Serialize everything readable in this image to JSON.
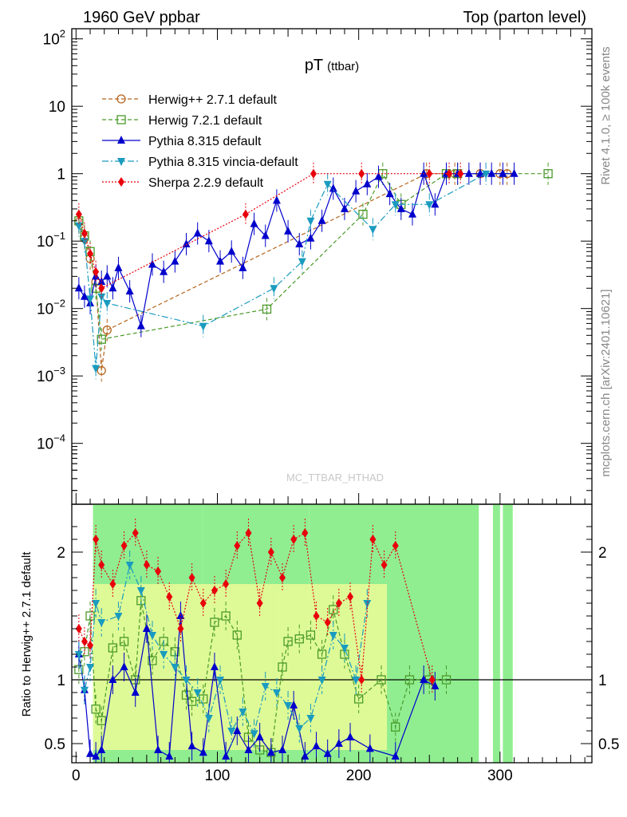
{
  "header": {
    "left": "1960 GeV ppbar",
    "right": "Top (parton level)"
  },
  "side_labels": {
    "rivet": "Rivet 4.1.0, ≥ 100k events",
    "mcplots": "mcplots.cern.ch [arXiv:2401.10621]"
  },
  "watermark": "MC_TTBAR_HTHAD",
  "chart_data": [
    {
      "type": "line",
      "title": "pT",
      "title_sub": "(ttbar)",
      "xlabel": "",
      "ylabel": "",
      "yscale": "log",
      "xlim": [
        -3,
        365
      ],
      "ylim": [
        1.25e-05,
        120
      ],
      "x_ticks": [
        "0",
        "100",
        "200",
        "300"
      ],
      "y_ticks": [
        {
          "base": "10",
          "exp": "2"
        },
        {
          "base": "10",
          "exp": ""
        },
        {
          "base": "1",
          "exp": ""
        },
        {
          "base": "10",
          "exp": "−1"
        },
        {
          "base": "10",
          "exp": "−2"
        },
        {
          "base": "10",
          "exp": "−3"
        },
        {
          "base": "10",
          "exp": "−4"
        }
      ],
      "series": [
        {
          "name": "Herwig++ 2.7.1 default",
          "color": "#b5651d",
          "style": "dashed",
          "marker": "open-circle",
          "x": [
            2,
            6,
            10,
            14,
            18,
            22,
            248,
            268,
            286,
            300,
            305
          ],
          "y": [
            0.19,
            0.11,
            0.055,
            0.025,
            0.0012,
            0.0048,
            1.0,
            1.0,
            1.0,
            1.0,
            1.0
          ]
        },
        {
          "name": "Herwig 7.2.1 default",
          "color": "#4a9a2a",
          "style": "dashed",
          "marker": "open-square",
          "x": [
            2,
            6,
            10,
            14,
            18,
            135,
            203,
            217,
            230,
            262,
            270,
            334
          ],
          "y": [
            0.2,
            0.12,
            0.07,
            0.02,
            0.0035,
            0.0098,
            0.25,
            1.0,
            0.35,
            1.0,
            1.0,
            1.0
          ]
        },
        {
          "name": "Pythia 8.315 default",
          "color": "#0000cc",
          "style": "solid",
          "marker": "filled-triangle-up",
          "x": [
            2,
            6,
            10,
            14,
            18,
            22,
            26,
            30,
            38,
            46,
            54,
            62,
            70,
            78,
            86,
            94,
            102,
            110,
            118,
            126,
            134,
            142,
            150,
            158,
            166,
            174,
            182,
            190,
            198,
            206,
            214,
            222,
            230,
            238,
            246,
            254,
            262,
            270,
            278,
            286,
            294,
            302,
            310
          ],
          "y": [
            0.02,
            0.015,
            0.012,
            0.03,
            0.025,
            0.03,
            0.02,
            0.04,
            0.018,
            0.0055,
            0.045,
            0.035,
            0.05,
            0.09,
            0.13,
            0.1,
            0.05,
            0.07,
            0.04,
            0.18,
            0.12,
            0.4,
            0.14,
            0.09,
            0.11,
            0.2,
            0.6,
            0.3,
            0.55,
            0.7,
            0.9,
            0.5,
            0.3,
            0.25,
            1.0,
            0.35,
            1.0,
            1.0,
            1.0,
            1.0,
            1.0,
            1.0,
            1.0
          ]
        },
        {
          "name": "Pythia 8.315 vincia-default",
          "color": "#1a9bbf",
          "style": "dashdot",
          "marker": "filled-triangle-down",
          "x": [
            2,
            6,
            10,
            14,
            18,
            22,
            90,
            140,
            160,
            166,
            178,
            210,
            226,
            250,
            290
          ],
          "y": [
            0.17,
            0.1,
            0.014,
            0.0013,
            0.015,
            0.012,
            0.0055,
            0.02,
            0.05,
            0.2,
            0.7,
            0.15,
            0.35,
            0.35,
            1.0
          ]
        },
        {
          "name": "Sherpa 2.2.9 default",
          "color": "#e8000b",
          "style": "dotted",
          "marker": "filled-diamond",
          "x": [
            2,
            6,
            10,
            14,
            18,
            120,
            168,
            202,
            250,
            264,
            272
          ],
          "y": [
            0.25,
            0.13,
            0.065,
            0.035,
            0.02,
            0.25,
            1.0,
            1.0,
            1.0,
            1.0,
            1.0
          ]
        }
      ]
    },
    {
      "type": "line",
      "title": "",
      "xlabel": "",
      "ylabel": "Ratio to Herwig++ 2.7.1 default",
      "xlim": [
        -3,
        365
      ],
      "ylim": [
        0.35,
        2.35
      ],
      "x_ticks": [
        "0",
        "100",
        "200",
        "300"
      ],
      "y_ticks": [
        "2",
        "1",
        "0.5"
      ],
      "bands": {
        "green_color": "#90ee90",
        "yellow_color": "#ffff99",
        "green_ranges": [
          [
            12,
            90
          ],
          [
            90,
            165
          ],
          [
            165,
            285
          ],
          [
            295,
            300
          ],
          [
            302,
            309
          ]
        ],
        "yellow_ranges": [
          [
            12,
            140
          ],
          [
            140,
            220
          ]
        ]
      },
      "series": [
        {
          "name": "Herwig 7.2.1 default",
          "color": "#4a9a2a",
          "style": "dashed",
          "marker": "open-square",
          "x": [
            2,
            6,
            10,
            14,
            18,
            26,
            34,
            42,
            46,
            54,
            62,
            70,
            78,
            82,
            90,
            98,
            106,
            114,
            122,
            130,
            138,
            146,
            150,
            158,
            166,
            174,
            182,
            190,
            200,
            216,
            226,
            236,
            250,
            262
          ],
          "y": [
            1.08,
            1.22,
            1.5,
            0.77,
            0.68,
            1.25,
            1.3,
            1.0,
            1.62,
            1.15,
            1.3,
            1.22,
            0.88,
            0.83,
            0.85,
            1.45,
            1.5,
            1.35,
            0.55,
            0.45,
            0.43,
            1.1,
            1.3,
            1.32,
            1.35,
            1.2,
            1.55,
            1.2,
            0.85,
            1.0,
            0.63,
            1.0,
            1.0,
            1.0
          ]
        },
        {
          "name": "Pythia 8.315 default",
          "color": "#0000cc",
          "style": "solid",
          "marker": "filled-triangle-up",
          "x": [
            2,
            6,
            10,
            14,
            18,
            26,
            34,
            42,
            50,
            58,
            66,
            74,
            82,
            90,
            98,
            106,
            114,
            122,
            130,
            138,
            146,
            154,
            162,
            170,
            178,
            186,
            194,
            208,
            226,
            246,
            254
          ],
          "y": [
            1.2,
            0.92,
            0.42,
            0.4,
            0.45,
            1.0,
            1.1,
            0.9,
            1.4,
            0.45,
            0.4,
            1.5,
            0.48,
            0.43,
            1.1,
            0.4,
            0.6,
            0.45,
            0.55,
            0.43,
            0.45,
            0.8,
            0.4,
            0.48,
            0.42,
            0.5,
            0.55,
            0.46,
            0.4,
            1.0,
            0.95
          ]
        },
        {
          "name": "Pythia 8.315 vincia-default",
          "color": "#1a9bbf",
          "style": "dashdot",
          "marker": "filled-triangle-down",
          "x": [
            2,
            6,
            10,
            14,
            18,
            30,
            38,
            46,
            54,
            62,
            70,
            78,
            86,
            94,
            102,
            110,
            118,
            126,
            134,
            142,
            150,
            158,
            166,
            174,
            182,
            190,
            198,
            206
          ],
          "y": [
            1.2,
            0.92,
            1.1,
            1.6,
            1.45,
            1.5,
            1.9,
            1.7,
            1.35,
            1.2,
            1.1,
            1.0,
            0.9,
            0.7,
            1.0,
            0.6,
            0.75,
            0.58,
            0.95,
            0.9,
            0.8,
            0.62,
            0.7,
            1.0,
            1.35,
            1.25,
            1.0,
            1.6
          ]
        },
        {
          "name": "Sherpa 2.2.9 default",
          "color": "#e8000b",
          "style": "dotted",
          "marker": "filled-diamond",
          "x": [
            2,
            6,
            10,
            14,
            18,
            26,
            34,
            42,
            50,
            58,
            66,
            74,
            82,
            90,
            98,
            106,
            114,
            122,
            130,
            138,
            146,
            154,
            162,
            170,
            178,
            186,
            194,
            202,
            210,
            218,
            226,
            252
          ],
          "y": [
            1.4,
            1.3,
            1.27,
            2.1,
            1.9,
            1.75,
            2.05,
            2.15,
            1.9,
            1.85,
            1.65,
            1.4,
            1.8,
            1.6,
            1.7,
            1.75,
            2.05,
            2.15,
            1.6,
            2.0,
            1.8,
            2.1,
            2.15,
            1.5,
            1.45,
            1.6,
            1.65,
            1.0,
            2.1,
            1.9,
            2.05,
            1.0
          ]
        }
      ]
    }
  ]
}
